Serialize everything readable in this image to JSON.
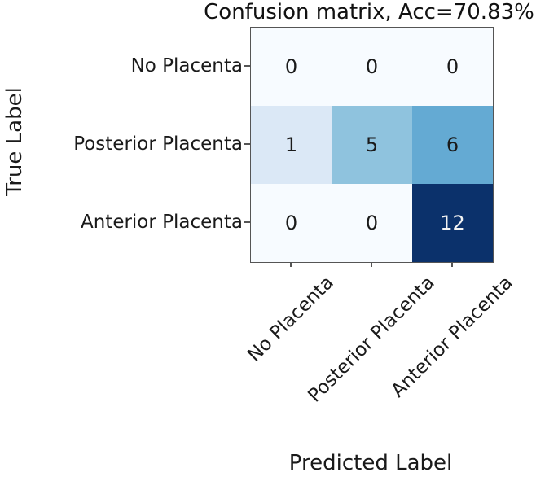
{
  "chart_data": {
    "type": "heatmap",
    "title": "Confusion matrix, Acc=70.83%",
    "accuracy_pct": 70.83,
    "xlabel": "Predicted Label",
    "ylabel": "True Label",
    "x_categories": [
      "No Placenta",
      "Posterior Placenta",
      "Anterior Placenta"
    ],
    "y_categories": [
      "No Placenta",
      "Posterior Placenta",
      "Anterior Placenta"
    ],
    "matrix": [
      [
        0,
        0,
        0
      ],
      [
        1,
        5,
        6
      ],
      [
        0,
        0,
        12
      ]
    ],
    "colormap": "Blues",
    "cell_colors": [
      [
        "#f7fbff",
        "#f7fbff",
        "#f7fbff"
      ],
      [
        "#dbe8f6",
        "#8fc3de",
        "#64aad3"
      ],
      [
        "#f7fbff",
        "#f7fbff",
        "#0b316b"
      ]
    ],
    "cell_text_colors": [
      [
        "#1a1a1a",
        "#1a1a1a",
        "#1a1a1a"
      ],
      [
        "#1a1a1a",
        "#1a1a1a",
        "#1a1a1a"
      ],
      [
        "#1a1a1a",
        "#1a1a1a",
        "#f2f2f2"
      ]
    ],
    "legend": "none",
    "grid": false
  }
}
